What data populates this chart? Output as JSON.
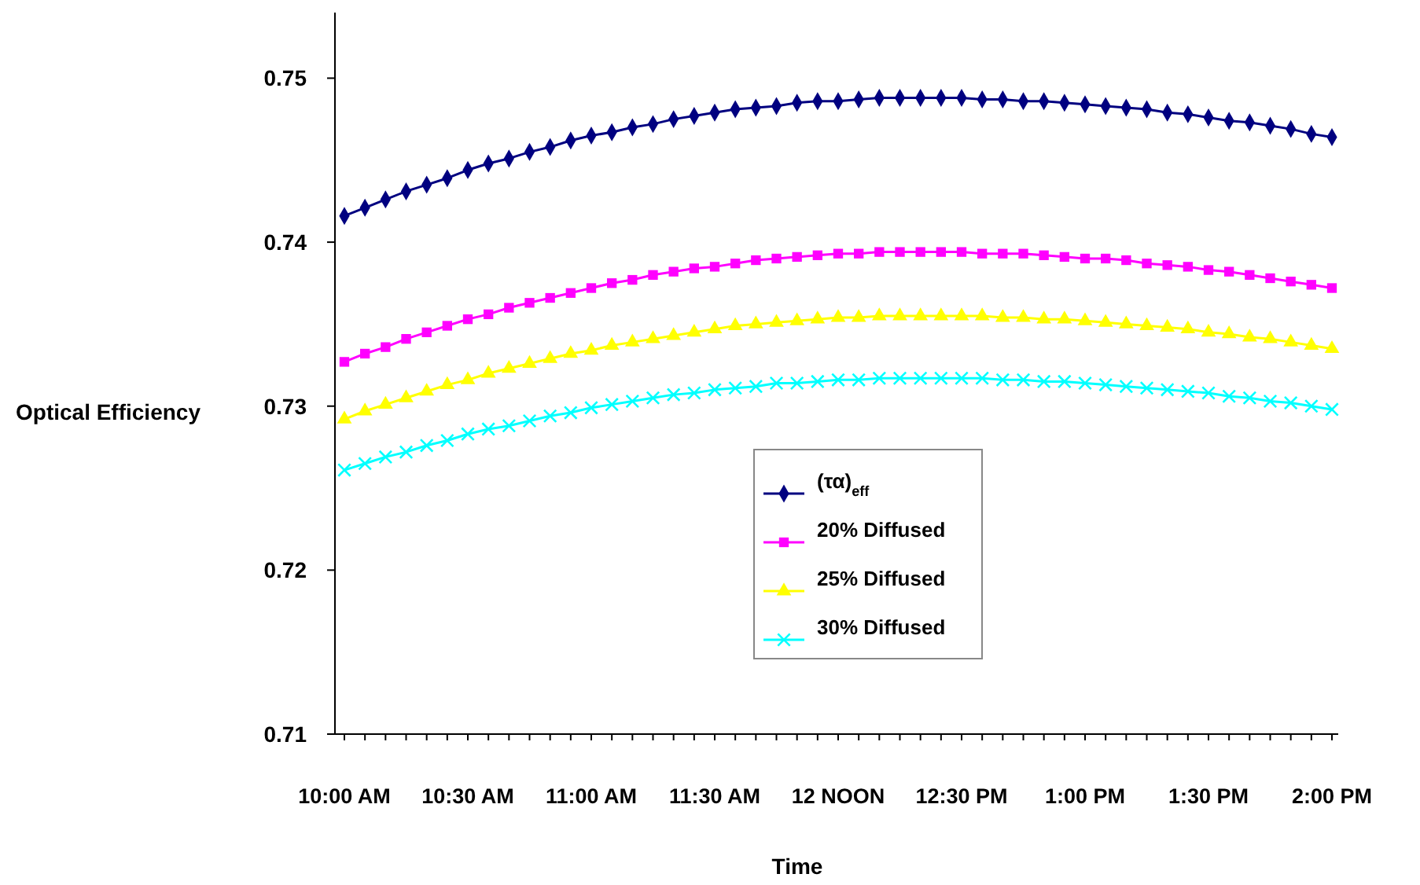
{
  "chart_data": {
    "type": "line",
    "xlabel": "Time",
    "ylabel": "Optical Efficiency",
    "categories": [
      "10:00 AM",
      null,
      null,
      null,
      null,
      null,
      "10:30 AM",
      null,
      null,
      null,
      null,
      null,
      "11:00 AM",
      null,
      null,
      null,
      null,
      null,
      "11:30 AM",
      null,
      null,
      null,
      null,
      null,
      "12 NOON",
      null,
      null,
      null,
      null,
      null,
      "12:30 PM",
      null,
      null,
      null,
      null,
      null,
      "1:00 PM",
      null,
      null,
      null,
      null,
      null,
      "1:30 PM",
      null,
      null,
      null,
      null,
      null,
      "2:00 PM"
    ],
    "series": [
      {
        "name": "(τα)$_{eff}$",
        "color": "#000080",
        "marker": "diamond",
        "values": [
          0.7416,
          0.7421,
          0.7426,
          0.7431,
          0.7435,
          0.7439,
          0.7444,
          0.7448,
          0.7451,
          0.7455,
          0.7458,
          0.7462,
          0.7465,
          0.7467,
          0.747,
          0.7472,
          0.7475,
          0.7477,
          0.7479,
          0.7481,
          0.7482,
          0.7483,
          0.7485,
          0.7486,
          0.7486,
          0.7487,
          0.7488,
          0.7488,
          0.7488,
          0.7488,
          0.7488,
          0.7487,
          0.7487,
          0.7486,
          0.7486,
          0.7485,
          0.7484,
          0.7483,
          0.7482,
          0.7481,
          0.7479,
          0.7478,
          0.7476,
          0.7474,
          0.7473,
          0.7471,
          0.7469,
          0.7466,
          0.7464
        ]
      },
      {
        "name": "20% Diffused",
        "color": "#ff00ff",
        "marker": "square",
        "values": [
          0.7327,
          0.7332,
          0.7336,
          0.7341,
          0.7345,
          0.7349,
          0.7353,
          0.7356,
          0.736,
          0.7363,
          0.7366,
          0.7369,
          0.7372,
          0.7375,
          0.7377,
          0.738,
          0.7382,
          0.7384,
          0.7385,
          0.7387,
          0.7389,
          0.739,
          0.7391,
          0.7392,
          0.7393,
          0.7393,
          0.7394,
          0.7394,
          0.7394,
          0.7394,
          0.7394,
          0.7393,
          0.7393,
          0.7393,
          0.7392,
          0.7391,
          0.739,
          0.739,
          0.7389,
          0.7387,
          0.7386,
          0.7385,
          0.7383,
          0.7382,
          0.738,
          0.7378,
          0.7376,
          0.7374,
          0.7372
        ]
      },
      {
        "name": "25% Diffused",
        "color": "#ffff00",
        "marker": "triangle",
        "values": [
          0.7292,
          0.7297,
          0.7301,
          0.7305,
          0.7309,
          0.7313,
          0.7316,
          0.732,
          0.7323,
          0.7326,
          0.7329,
          0.7332,
          0.7334,
          0.7337,
          0.7339,
          0.7341,
          0.7343,
          0.7345,
          0.7347,
          0.7349,
          0.735,
          0.7351,
          0.7352,
          0.7353,
          0.7354,
          0.7354,
          0.7355,
          0.7355,
          0.7355,
          0.7355,
          0.7355,
          0.7355,
          0.7354,
          0.7354,
          0.7353,
          0.7353,
          0.7352,
          0.7351,
          0.735,
          0.7349,
          0.7348,
          0.7347,
          0.7345,
          0.7344,
          0.7342,
          0.7341,
          0.7339,
          0.7337,
          0.7335
        ]
      },
      {
        "name": "30% Diffused",
        "color": "#00ffff",
        "marker": "cross",
        "values": [
          0.7261,
          0.7265,
          0.7269,
          0.7272,
          0.7276,
          0.7279,
          0.7283,
          0.7286,
          0.7288,
          0.7291,
          0.7294,
          0.7296,
          0.7299,
          0.7301,
          0.7303,
          0.7305,
          0.7307,
          0.7308,
          0.731,
          0.7311,
          0.7312,
          0.7314,
          0.7314,
          0.7315,
          0.7316,
          0.7316,
          0.7317,
          0.7317,
          0.7317,
          0.7317,
          0.7317,
          0.7317,
          0.7316,
          0.7316,
          0.7315,
          0.7315,
          0.7314,
          0.7313,
          0.7312,
          0.7311,
          0.731,
          0.7309,
          0.7308,
          0.7306,
          0.7305,
          0.7303,
          0.7302,
          0.73,
          0.7298
        ]
      }
    ],
    "ylim": [
      0.71,
      0.754
    ],
    "yticks": [
      0.71,
      0.72,
      0.73,
      0.74,
      0.75
    ],
    "grid": false,
    "legend": "bottom"
  }
}
